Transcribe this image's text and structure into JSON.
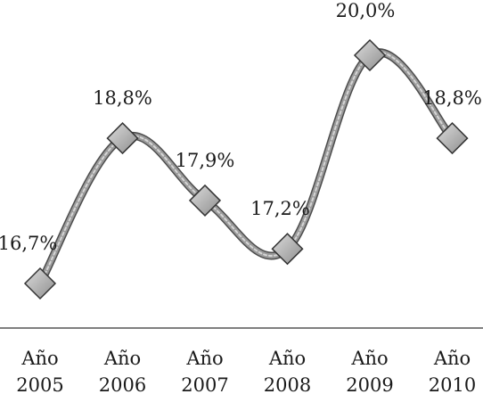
{
  "chart_data": {
    "type": "line",
    "categories": [
      "Año 2005",
      "Año 2006",
      "Año 2007",
      "Año 2008",
      "Año 2009",
      "Año 2010"
    ],
    "category_lines": [
      [
        "Año",
        "2005"
      ],
      [
        "Año",
        "2006"
      ],
      [
        "Año",
        "2007"
      ],
      [
        "Año",
        "2008"
      ],
      [
        "Año",
        "2009"
      ],
      [
        "Año",
        "2010"
      ]
    ],
    "values": [
      16.7,
      18.8,
      17.9,
      17.2,
      20.0,
      18.8
    ],
    "data_labels": [
      "16,7%",
      "18,8%",
      "17,9%",
      "17,2%",
      "20,0%",
      "18,8%"
    ],
    "title": "",
    "xlabel": "",
    "ylabel": "",
    "smooth": true,
    "marker": "diamond",
    "grid": false,
    "legend": "none",
    "colors": {
      "line": "#9a9a9a",
      "line_edge": "#4d4d4d",
      "marker_fill": "#b5b5b5",
      "marker_edge": "#333333",
      "axis": "#555555",
      "text": "#1a1a1a"
    }
  }
}
